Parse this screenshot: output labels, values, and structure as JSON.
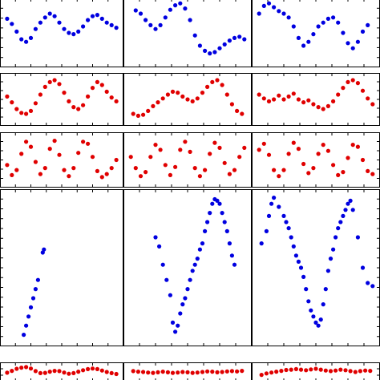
{
  "chart_data": {
    "type": "scatter",
    "layout": {
      "rows": 5,
      "cols": 3
    },
    "x_range": [
      0,
      1
    ],
    "y_range": [
      0,
      1
    ],
    "grid": false,
    "legend": "none",
    "colors": {
      "blue": "#0000e0",
      "red": "#e00000",
      "axes": "#000000"
    },
    "panels": [
      {
        "row": 0,
        "col": 0,
        "color": "blue",
        "x": [
          0.04,
          0.08,
          0.12,
          0.16,
          0.2,
          0.24,
          0.28,
          0.32,
          0.36,
          0.4,
          0.44,
          0.48,
          0.52,
          0.56,
          0.6,
          0.64,
          0.68,
          0.72,
          0.76,
          0.8,
          0.84,
          0.88,
          0.92,
          0.96
        ],
        "y": [
          0.72,
          0.64,
          0.52,
          0.4,
          0.36,
          0.42,
          0.56,
          0.66,
          0.74,
          0.8,
          0.76,
          0.66,
          0.56,
          0.5,
          0.48,
          0.52,
          0.6,
          0.7,
          0.76,
          0.78,
          0.72,
          0.66,
          0.62,
          0.58
        ]
      },
      {
        "row": 0,
        "col": 1,
        "color": "blue",
        "x": [
          0.08,
          0.12,
          0.16,
          0.2,
          0.24,
          0.28,
          0.32,
          0.36,
          0.4,
          0.44,
          0.48,
          0.52,
          0.56,
          0.6,
          0.64,
          0.68,
          0.72,
          0.76,
          0.8,
          0.84,
          0.88,
          0.92,
          0.96
        ],
        "y": [
          0.85,
          0.8,
          0.7,
          0.62,
          0.56,
          0.62,
          0.74,
          0.86,
          0.93,
          0.96,
          0.88,
          0.7,
          0.46,
          0.3,
          0.22,
          0.18,
          0.2,
          0.26,
          0.32,
          0.38,
          0.42,
          0.44,
          0.4
        ]
      },
      {
        "row": 0,
        "col": 2,
        "color": "blue",
        "x": [
          0.04,
          0.08,
          0.12,
          0.16,
          0.2,
          0.24,
          0.28,
          0.32,
          0.36,
          0.4,
          0.44,
          0.48,
          0.52,
          0.56,
          0.6,
          0.64,
          0.68,
          0.72,
          0.76,
          0.8,
          0.84,
          0.88,
          0.92
        ],
        "y": [
          0.8,
          0.92,
          0.96,
          0.9,
          0.84,
          0.8,
          0.74,
          0.6,
          0.42,
          0.3,
          0.36,
          0.48,
          0.6,
          0.66,
          0.72,
          0.74,
          0.66,
          0.5,
          0.34,
          0.26,
          0.36,
          0.52,
          0.62
        ]
      },
      {
        "row": 1,
        "col": 0,
        "color": "red",
        "x": [
          0.04,
          0.08,
          0.12,
          0.16,
          0.2,
          0.24,
          0.28,
          0.32,
          0.36,
          0.4,
          0.44,
          0.48,
          0.52,
          0.56,
          0.6,
          0.64,
          0.68,
          0.72,
          0.76,
          0.8,
          0.84,
          0.88,
          0.92,
          0.96
        ],
        "y": [
          0.56,
          0.44,
          0.3,
          0.22,
          0.2,
          0.26,
          0.42,
          0.6,
          0.76,
          0.86,
          0.9,
          0.82,
          0.64,
          0.46,
          0.34,
          0.3,
          0.38,
          0.56,
          0.74,
          0.86,
          0.8,
          0.66,
          0.54,
          0.46
        ]
      },
      {
        "row": 1,
        "col": 1,
        "color": "red",
        "x": [
          0.06,
          0.1,
          0.14,
          0.18,
          0.22,
          0.26,
          0.3,
          0.34,
          0.38,
          0.42,
          0.46,
          0.5,
          0.54,
          0.58,
          0.62,
          0.66,
          0.7,
          0.74,
          0.78,
          0.82,
          0.86,
          0.9,
          0.94
        ],
        "y": [
          0.2,
          0.16,
          0.18,
          0.26,
          0.36,
          0.44,
          0.52,
          0.6,
          0.66,
          0.64,
          0.56,
          0.5,
          0.46,
          0.52,
          0.64,
          0.76,
          0.86,
          0.9,
          0.8,
          0.6,
          0.4,
          0.26,
          0.2
        ]
      },
      {
        "row": 1,
        "col": 2,
        "color": "red",
        "x": [
          0.04,
          0.08,
          0.12,
          0.16,
          0.2,
          0.24,
          0.28,
          0.32,
          0.36,
          0.4,
          0.44,
          0.48,
          0.52,
          0.56,
          0.6,
          0.64,
          0.68,
          0.72,
          0.76,
          0.8,
          0.84,
          0.88,
          0.92,
          0.96
        ],
        "y": [
          0.6,
          0.52,
          0.46,
          0.5,
          0.58,
          0.5,
          0.56,
          0.62,
          0.5,
          0.44,
          0.48,
          0.4,
          0.34,
          0.3,
          0.36,
          0.46,
          0.6,
          0.74,
          0.86,
          0.9,
          0.84,
          0.68,
          0.52,
          0.4
        ]
      },
      {
        "row": 2,
        "col": 0,
        "color": "red",
        "x": [
          0.04,
          0.08,
          0.12,
          0.16,
          0.2,
          0.24,
          0.28,
          0.32,
          0.36,
          0.4,
          0.44,
          0.48,
          0.52,
          0.56,
          0.6,
          0.64,
          0.68,
          0.72,
          0.76,
          0.8,
          0.84,
          0.88,
          0.92,
          0.96
        ],
        "y": [
          0.4,
          0.2,
          0.3,
          0.62,
          0.86,
          0.76,
          0.46,
          0.22,
          0.34,
          0.72,
          0.88,
          0.6,
          0.3,
          0.18,
          0.34,
          0.64,
          0.86,
          0.82,
          0.56,
          0.28,
          0.16,
          0.22,
          0.34,
          0.5
        ]
      },
      {
        "row": 2,
        "col": 1,
        "color": "red",
        "x": [
          0.04,
          0.08,
          0.12,
          0.16,
          0.2,
          0.24,
          0.28,
          0.32,
          0.36,
          0.4,
          0.44,
          0.48,
          0.52,
          0.56,
          0.6,
          0.64,
          0.68,
          0.72,
          0.76,
          0.8,
          0.84,
          0.88,
          0.92,
          0.96
        ],
        "y": [
          0.56,
          0.34,
          0.18,
          0.26,
          0.56,
          0.8,
          0.7,
          0.4,
          0.2,
          0.36,
          0.7,
          0.86,
          0.66,
          0.34,
          0.18,
          0.3,
          0.62,
          0.84,
          0.74,
          0.44,
          0.22,
          0.3,
          0.56,
          0.74
        ]
      },
      {
        "row": 2,
        "col": 2,
        "color": "red",
        "x": [
          0.04,
          0.08,
          0.12,
          0.16,
          0.2,
          0.24,
          0.28,
          0.32,
          0.36,
          0.4,
          0.44,
          0.48,
          0.52,
          0.56,
          0.6,
          0.64,
          0.68,
          0.72,
          0.76,
          0.8,
          0.84,
          0.88,
          0.92,
          0.96
        ],
        "y": [
          0.7,
          0.82,
          0.6,
          0.3,
          0.18,
          0.3,
          0.62,
          0.84,
          0.72,
          0.42,
          0.24,
          0.34,
          0.62,
          0.8,
          0.68,
          0.4,
          0.2,
          0.26,
          0.54,
          0.8,
          0.76,
          0.5,
          0.28,
          0.22
        ]
      },
      {
        "row": 3,
        "col": 0,
        "color": "blue",
        "x": [
          0.18,
          0.2,
          0.22,
          0.24,
          0.26,
          0.28,
          0.3,
          0.34,
          0.35
        ],
        "y": [
          0.06,
          0.12,
          0.18,
          0.24,
          0.3,
          0.36,
          0.42,
          0.6,
          0.62
        ]
      },
      {
        "row": 3,
        "col": 1,
        "color": "blue",
        "x": [
          0.24,
          0.27,
          0.3,
          0.33,
          0.36,
          0.38,
          0.4,
          0.42,
          0.44,
          0.46,
          0.48,
          0.5,
          0.52,
          0.54,
          0.56,
          0.58,
          0.6,
          0.62,
          0.64,
          0.66,
          0.68,
          0.7,
          0.72,
          0.74,
          0.76,
          0.78,
          0.8,
          0.82,
          0.84,
          0.86,
          0.88
        ],
        "y": [
          0.7,
          0.64,
          0.52,
          0.42,
          0.32,
          0.14,
          0.08,
          0.12,
          0.2,
          0.26,
          0.3,
          0.36,
          0.42,
          0.48,
          0.52,
          0.56,
          0.62,
          0.66,
          0.74,
          0.8,
          0.86,
          0.92,
          0.95,
          0.94,
          0.92,
          0.86,
          0.8,
          0.74,
          0.66,
          0.58,
          0.52
        ]
      },
      {
        "row": 3,
        "col": 2,
        "color": "blue",
        "x": [
          0.06,
          0.1,
          0.12,
          0.14,
          0.16,
          0.2,
          0.24,
          0.26,
          0.28,
          0.3,
          0.32,
          0.34,
          0.36,
          0.38,
          0.4,
          0.42,
          0.44,
          0.46,
          0.48,
          0.5,
          0.52,
          0.54,
          0.56,
          0.58,
          0.6,
          0.62,
          0.64,
          0.66,
          0.68,
          0.7,
          0.72,
          0.74,
          0.76,
          0.78,
          0.8,
          0.84,
          0.88,
          0.92,
          0.96
        ],
        "y": [
          0.66,
          0.74,
          0.84,
          0.92,
          0.96,
          0.9,
          0.84,
          0.8,
          0.76,
          0.7,
          0.64,
          0.58,
          0.54,
          0.5,
          0.44,
          0.36,
          0.28,
          0.22,
          0.18,
          0.14,
          0.12,
          0.16,
          0.26,
          0.36,
          0.48,
          0.56,
          0.62,
          0.7,
          0.76,
          0.8,
          0.84,
          0.88,
          0.92,
          0.94,
          0.88,
          0.7,
          0.5,
          0.4,
          0.38
        ]
      },
      {
        "row": 4,
        "col": 0,
        "color": "red",
        "x": [
          0.04,
          0.08,
          0.12,
          0.16,
          0.2,
          0.24,
          0.28,
          0.32,
          0.36,
          0.4,
          0.44,
          0.48,
          0.52,
          0.56,
          0.6,
          0.64,
          0.68,
          0.72,
          0.76,
          0.8,
          0.84,
          0.88,
          0.92,
          0.96
        ],
        "y": [
          0.45,
          0.58,
          0.72,
          0.8,
          0.84,
          0.74,
          0.56,
          0.42,
          0.44,
          0.52,
          0.58,
          0.56,
          0.46,
          0.38,
          0.42,
          0.52,
          0.62,
          0.7,
          0.74,
          0.7,
          0.6,
          0.5,
          0.42,
          0.36
        ]
      },
      {
        "row": 4,
        "col": 1,
        "color": "red",
        "x": [
          0.06,
          0.1,
          0.14,
          0.18,
          0.22,
          0.26,
          0.3,
          0.34,
          0.38,
          0.42,
          0.46,
          0.5,
          0.54,
          0.58,
          0.62,
          0.66,
          0.7,
          0.74,
          0.78,
          0.82,
          0.86,
          0.9,
          0.94
        ],
        "y": [
          0.56,
          0.52,
          0.5,
          0.46,
          0.44,
          0.48,
          0.52,
          0.48,
          0.44,
          0.46,
          0.5,
          0.48,
          0.44,
          0.46,
          0.5,
          0.54,
          0.52,
          0.48,
          0.5,
          0.54,
          0.56,
          0.54,
          0.58
        ]
      },
      {
        "row": 4,
        "col": 2,
        "color": "red",
        "x": [
          0.06,
          0.1,
          0.14,
          0.18,
          0.22,
          0.26,
          0.3,
          0.34,
          0.38,
          0.42,
          0.46,
          0.5,
          0.54,
          0.58,
          0.62,
          0.66,
          0.7,
          0.74,
          0.78,
          0.82,
          0.86,
          0.9,
          0.94
        ],
        "y": [
          0.3,
          0.4,
          0.46,
          0.52,
          0.58,
          0.64,
          0.66,
          0.7,
          0.66,
          0.62,
          0.68,
          0.72,
          0.66,
          0.6,
          0.56,
          0.6,
          0.66,
          0.62,
          0.56,
          0.5,
          0.56,
          0.6,
          0.58
        ]
      }
    ]
  }
}
